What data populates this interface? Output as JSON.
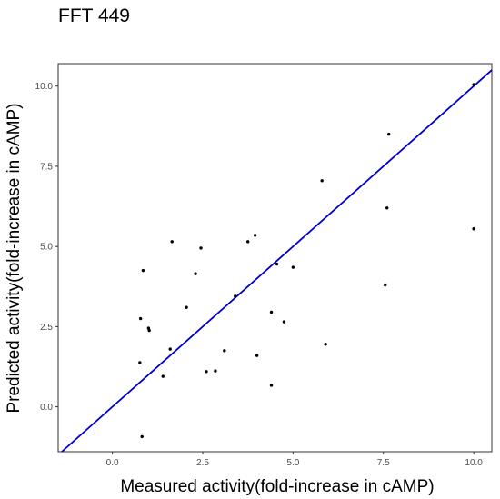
{
  "chart_data": {
    "type": "scatter",
    "title": "FFT 449",
    "xlabel": "Measured activity(fold-increase in cAMP)",
    "ylabel": "Predicted activity(fold-increase in cAMP)",
    "xlim": [
      -1.5,
      10.5
    ],
    "ylim": [
      -1.4,
      10.7
    ],
    "xticks": [
      0.0,
      2.5,
      5.0,
      7.5,
      10.0
    ],
    "xtick_labels": [
      "0.0",
      "2.5",
      "5.0",
      "7.5",
      "10.0"
    ],
    "yticks": [
      0.0,
      2.5,
      5.0,
      7.5,
      10.0
    ],
    "ytick_labels": [
      "0.0",
      "2.5",
      "5.0",
      "7.5",
      "10.0"
    ],
    "grid": false,
    "point_color": "#000000",
    "identity_line": {
      "from": [
        -1.5,
        -1.5
      ],
      "to": [
        10.5,
        10.5
      ],
      "color": "#0000cc"
    },
    "points": [
      {
        "x": 10.0,
        "y": 10.05
      },
      {
        "x": 7.65,
        "y": 8.5
      },
      {
        "x": 5.8,
        "y": 7.05
      },
      {
        "x": 7.6,
        "y": 6.2
      },
      {
        "x": 10.0,
        "y": 5.55
      },
      {
        "x": 3.95,
        "y": 5.35
      },
      {
        "x": 1.65,
        "y": 5.15
      },
      {
        "x": 3.75,
        "y": 5.15
      },
      {
        "x": 2.45,
        "y": 4.95
      },
      {
        "x": 4.55,
        "y": 4.45
      },
      {
        "x": 5.0,
        "y": 4.35
      },
      {
        "x": 0.85,
        "y": 4.25
      },
      {
        "x": 2.3,
        "y": 4.15
      },
      {
        "x": 7.55,
        "y": 3.8
      },
      {
        "x": 3.4,
        "y": 3.45
      },
      {
        "x": 2.05,
        "y": 3.1
      },
      {
        "x": 4.4,
        "y": 2.95
      },
      {
        "x": 0.78,
        "y": 2.75
      },
      {
        "x": 4.75,
        "y": 2.65
      },
      {
        "x": 1.0,
        "y": 2.45
      },
      {
        "x": 1.02,
        "y": 2.38
      },
      {
        "x": 5.9,
        "y": 1.95
      },
      {
        "x": 1.6,
        "y": 1.8
      },
      {
        "x": 3.1,
        "y": 1.75
      },
      {
        "x": 4.0,
        "y": 1.6
      },
      {
        "x": 0.76,
        "y": 1.38
      },
      {
        "x": 2.85,
        "y": 1.12
      },
      {
        "x": 2.6,
        "y": 1.1
      },
      {
        "x": 1.4,
        "y": 0.95
      },
      {
        "x": 4.4,
        "y": 0.67
      },
      {
        "x": 0.82,
        "y": -0.93
      }
    ]
  }
}
